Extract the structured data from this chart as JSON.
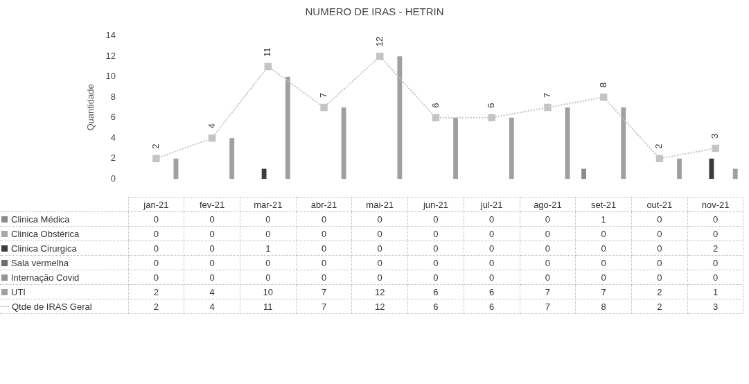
{
  "chart_data": {
    "type": "bar",
    "title": "NUMERO DE IRAS - HETRIN",
    "ylabel": "Quantidade",
    "categories": [
      "jan-21",
      "fev-21",
      "mar-21",
      "abr-21",
      "mai-21",
      "jun-21",
      "jul-21",
      "ago-21",
      "set-21",
      "out-21",
      "nov-21"
    ],
    "series": [
      {
        "name": "Clinica Médica",
        "color": "#8c8c8c",
        "values": [
          0,
          0,
          0,
          0,
          0,
          0,
          0,
          0,
          1,
          0,
          0
        ]
      },
      {
        "name": "Clinica Obstérica",
        "color": "#a8a8a8",
        "values": [
          0,
          0,
          0,
          0,
          0,
          0,
          0,
          0,
          0,
          0,
          0
        ]
      },
      {
        "name": "Clinica Cirurgica",
        "color": "#3c3c3c",
        "values": [
          0,
          0,
          1,
          0,
          0,
          0,
          0,
          0,
          0,
          0,
          2
        ]
      },
      {
        "name": "Sala vermelha",
        "color": "#6e6e6e",
        "values": [
          0,
          0,
          0,
          0,
          0,
          0,
          0,
          0,
          0,
          0,
          0
        ]
      },
      {
        "name": "Internação Covid",
        "color": "#949494",
        "values": [
          0,
          0,
          0,
          0,
          0,
          0,
          0,
          0,
          0,
          0,
          0
        ]
      },
      {
        "name": "UTI",
        "color": "#a0a0a0",
        "values": [
          2,
          4,
          10,
          7,
          12,
          6,
          6,
          7,
          7,
          2,
          1
        ]
      },
      {
        "name": "Qtde de IRAS Geral",
        "type": "line",
        "color": "#c4c4c4",
        "line_style": "dotted",
        "marker": "square",
        "values": [
          2,
          4,
          11,
          7,
          12,
          6,
          6,
          7,
          8,
          2,
          3
        ],
        "value_labels": [
          "2",
          "4",
          "11",
          "7",
          "12",
          "6",
          "6",
          "7",
          "8",
          "2",
          "3"
        ]
      }
    ],
    "ylim": [
      0,
      14
    ],
    "yticks": [
      0,
      2,
      4,
      6,
      8,
      10,
      12,
      14
    ],
    "grid": false,
    "legend": "bottom",
    "data_labels": true
  }
}
